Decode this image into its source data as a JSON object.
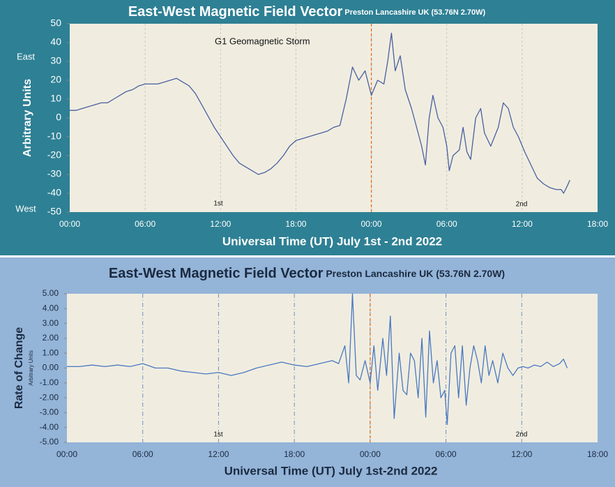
{
  "chart_data": [
    {
      "type": "line",
      "title": "East-West Magnetic Field Vector",
      "subtitle": "Preston Lancashire UK (53.76N 2.70W)",
      "y_label": "Arbitrary Units",
      "x_label": "Universal Time (UT) July 1st - 2nd 2022",
      "annotation": "G1 Geomagnetic Storm",
      "direction_labels": [
        "East",
        "West"
      ],
      "day_labels": [
        "1st",
        "2nd"
      ],
      "xlim": [
        0,
        42
      ],
      "xticks": [
        {
          "value": 0,
          "label": "00:00"
        },
        {
          "value": 6,
          "label": "06:00"
        },
        {
          "value": 12,
          "label": "12:00"
        },
        {
          "value": 18,
          "label": "18:00"
        },
        {
          "value": 24,
          "label": "00:00"
        },
        {
          "value": 30,
          "label": "06:00"
        },
        {
          "value": 36,
          "label": "12:00"
        },
        {
          "value": 42,
          "label": "18:00"
        }
      ],
      "ylim": [
        -50,
        50
      ],
      "yticks": [
        -50,
        -40,
        -30,
        -20,
        -10,
        0,
        10,
        20,
        30,
        40,
        50
      ],
      "grid": true,
      "marker_x": 24,
      "marker_color": "#e07020",
      "x": [
        0,
        0.5,
        1,
        1.5,
        2,
        2.5,
        3,
        3.5,
        4,
        4.5,
        5,
        5.5,
        6,
        6.5,
        7,
        7.5,
        8,
        8.5,
        9,
        9.5,
        10,
        10.5,
        11,
        11.5,
        12,
        12.5,
        13,
        13.5,
        14,
        14.5,
        15,
        15.5,
        16,
        16.5,
        17,
        17.5,
        18,
        18.5,
        19,
        19.5,
        20,
        20.5,
        21,
        21.5,
        22,
        22.5,
        23,
        23.5,
        24,
        24.5,
        25,
        25.3,
        25.6,
        25.9,
        26.3,
        26.7,
        27.2,
        27.6,
        28,
        28.3,
        28.6,
        28.9,
        29.3,
        29.7,
        30,
        30.2,
        30.5,
        31,
        31.3,
        31.6,
        31.9,
        32.3,
        32.7,
        33,
        33.5,
        34.1,
        34.5,
        34.9,
        35.3,
        35.7,
        36.2,
        36.7,
        37.2,
        37.7,
        38.2,
        38.7,
        39.1,
        39.3,
        39.6,
        39.8
      ],
      "series": [
        {
          "name": "East-West",
          "color": "#4a5fa0",
          "values": [
            4,
            4,
            5,
            6,
            7,
            8,
            8,
            10,
            12,
            14,
            15,
            17,
            18,
            18,
            18,
            19,
            20,
            21,
            19,
            17,
            13,
            7,
            1,
            -5,
            -10,
            -15,
            -20,
            -24,
            -26,
            -28,
            -30,
            -29,
            -27,
            -24,
            -20,
            -15,
            -12,
            -11,
            -10,
            -9,
            -8,
            -7,
            -5,
            -4,
            10,
            27,
            20,
            25,
            12,
            20,
            18,
            30,
            45,
            25,
            33,
            15,
            5,
            -5,
            -15,
            -25,
            0,
            12,
            0,
            -5,
            -15,
            -28,
            -20,
            -17,
            -5,
            -18,
            -22,
            0,
            5,
            -8,
            -15,
            -5,
            8,
            5,
            -5,
            -10,
            -18,
            -25,
            -32,
            -35,
            -37,
            -38,
            -38,
            -40,
            -36,
            -33
          ]
        }
      ]
    },
    {
      "type": "line",
      "title": "East-West Magnetic Field Vector",
      "subtitle": "Preston Lancashire UK (53.76N 2.70W)",
      "y_label": "Rate of Change",
      "y_sublabel": "Arbitrary Units",
      "x_label": "Universal Time (UT) July 1st-2nd 2022",
      "day_labels": [
        "1st",
        "2nd"
      ],
      "xlim": [
        0,
        42
      ],
      "xticks": [
        {
          "value": 0,
          "label": "00:00"
        },
        {
          "value": 6,
          "label": "06:00"
        },
        {
          "value": 12,
          "label": "12:00"
        },
        {
          "value": 18,
          "label": "18:00"
        },
        {
          "value": 24,
          "label": "00:00"
        },
        {
          "value": 30,
          "label": "06:00"
        },
        {
          "value": 36,
          "label": "12:00"
        },
        {
          "value": 42,
          "label": "18:00"
        }
      ],
      "ylim": [
        -5,
        5
      ],
      "yticks": [
        {
          "value": -5,
          "label": "-5.00"
        },
        {
          "value": -4,
          "label": "-4.00"
        },
        {
          "value": -3,
          "label": "-3.00"
        },
        {
          "value": -2,
          "label": "-2.00"
        },
        {
          "value": -1,
          "label": "-1.00"
        },
        {
          "value": 0,
          "label": "0.00"
        },
        {
          "value": 1,
          "label": "1.00"
        },
        {
          "value": 2,
          "label": "2.00"
        },
        {
          "value": 3,
          "label": "3.00"
        },
        {
          "value": 4,
          "label": "4.00"
        },
        {
          "value": 5,
          "label": "5.00"
        }
      ],
      "grid": true,
      "marker_x": 24,
      "marker_color": "#e07020",
      "x": [
        0,
        1,
        2,
        3,
        4,
        5,
        6,
        7,
        8,
        9,
        10,
        11,
        12,
        13,
        14,
        15,
        16,
        17,
        18,
        19,
        20,
        21,
        21.5,
        22,
        22.3,
        22.6,
        22.9,
        23.2,
        23.6,
        24,
        24.3,
        24.6,
        25,
        25.3,
        25.6,
        25.9,
        26.3,
        26.6,
        26.9,
        27.2,
        27.5,
        27.8,
        28.1,
        28.4,
        28.7,
        29,
        29.3,
        29.6,
        29.9,
        30.1,
        30.4,
        30.7,
        31,
        31.3,
        31.6,
        31.9,
        32.2,
        32.5,
        32.8,
        33.1,
        33.4,
        33.7,
        34.1,
        34.5,
        34.9,
        35.3,
        35.7,
        36.1,
        36.5,
        37,
        37.5,
        38,
        38.5,
        39,
        39.3,
        39.6
      ],
      "series": [
        {
          "name": "Rate of Change",
          "color": "#4a78c0",
          "values": [
            0.1,
            0.1,
            0.2,
            0.1,
            0.2,
            0.1,
            0.3,
            0,
            0,
            -0.2,
            -0.3,
            -0.4,
            -0.3,
            -0.5,
            -0.3,
            0,
            0.2,
            0.4,
            0.2,
            0.1,
            0.3,
            0.5,
            0.3,
            1.5,
            -1,
            5,
            -0.5,
            -0.8,
            0.5,
            -1,
            1.5,
            -1.5,
            2,
            -0.5,
            3.5,
            -3.4,
            1,
            -1.5,
            -1.8,
            1,
            0.5,
            -2,
            2,
            -3.3,
            2.5,
            -1,
            0.5,
            -2,
            -1.5,
            -3.8,
            1,
            1.5,
            -2,
            1.5,
            -2.5,
            0,
            1.5,
            0.5,
            -1,
            1.5,
            -0.5,
            0.5,
            -1,
            1,
            0,
            -0.5,
            0,
            0.1,
            0,
            0.2,
            0.1,
            0.4,
            0.1,
            0.3,
            0.6,
            0
          ]
        }
      ]
    }
  ]
}
